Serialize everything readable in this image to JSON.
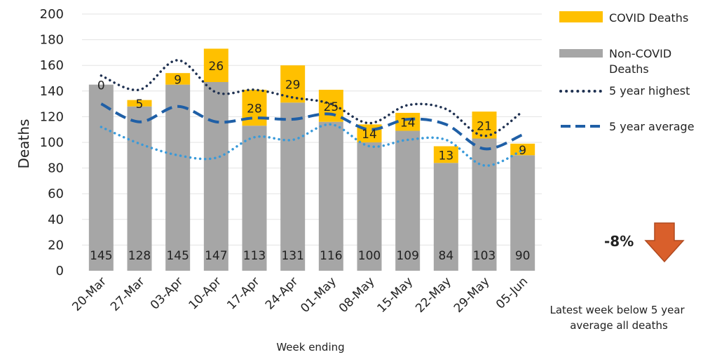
{
  "chart_data": {
    "type": "bar",
    "stacked": true,
    "xlabel": "Week ending",
    "ylabel": "Deaths",
    "ylim": [
      0,
      200
    ],
    "ytick_step": 20,
    "grid": true,
    "categories": [
      "20-Mar",
      "27-Mar",
      "03-Apr",
      "10-Apr",
      "17-Apr",
      "24-Apr",
      "01-May",
      "08-May",
      "15-May",
      "22-May",
      "29-May",
      "05-Jun"
    ],
    "series": [
      {
        "name": "Non-COVID Deaths",
        "kind": "bar",
        "color": "#a6a6a6",
        "values": [
          145,
          128,
          145,
          147,
          113,
          131,
          116,
          100,
          109,
          84,
          103,
          90
        ]
      },
      {
        "name": "COVID Deaths",
        "kind": "bar",
        "color": "#ffc000",
        "values": [
          0,
          5,
          9,
          26,
          28,
          29,
          25,
          14,
          14,
          13,
          21,
          9
        ]
      },
      {
        "name": "5 year highest",
        "kind": "line",
        "style": "dotted",
        "color": "#1f3151",
        "values": [
          152,
          141,
          164,
          139,
          141,
          135,
          130,
          115,
          129,
          126,
          105,
          124
        ]
      },
      {
        "name": "5 year average",
        "kind": "line",
        "style": "dashed",
        "color": "#1f5fa6",
        "values": [
          130,
          116,
          128,
          116,
          119,
          118,
          122,
          110,
          118,
          114,
          95,
          106
        ]
      },
      {
        "name": "",
        "kind": "line",
        "style": "dotted",
        "color": "#3a9ad9",
        "values": [
          112,
          99,
          90,
          88,
          104,
          102,
          114,
          97,
          102,
          102,
          82,
          94
        ]
      }
    ],
    "legend_position": "right",
    "annotation": {
      "value": "-8%",
      "arrow": "down",
      "arrow_color": "#d95f2b",
      "text_lines": [
        "Latest week below 5 year",
        "average all deaths"
      ]
    }
  }
}
